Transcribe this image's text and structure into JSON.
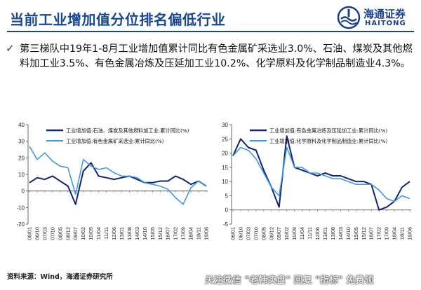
{
  "slide": {
    "title": "当前工业增加值分位排名偏低行业",
    "logo": {
      "cn": "海通证券",
      "en": "HAITONG"
    },
    "bullet": "第三梯队中19年1-8月工业增加值累计同比有色金属矿采选业3.0%、石油、煤炭及其他燃料加工业3.5%、有色金属冶炼及压延加工业10.2%、化学原料及化学制品制造业4.3%。",
    "footer": "资料来源：Wind，海通证券研究所",
    "watermark": "关注微信 \"老韩实盘\" 回复 \"指标\" 免费领"
  },
  "colors": {
    "brand": "#17478f",
    "series_dark": "#13237a",
    "series_light": "#3f9be0"
  },
  "chart_data": [
    {
      "type": "line",
      "ylim": [
        -20,
        40
      ],
      "yticks": [
        "-20",
        "-10",
        "0",
        "10",
        "20",
        "30",
        "40"
      ],
      "categories": [
        "06/01",
        "06/10",
        "07/03",
        "07/10",
        "08/05",
        "08/12",
        "09/07",
        "10/02",
        "10/09",
        "11/04",
        "11/11",
        "12/06",
        "13/01",
        "13/08",
        "14/03",
        "14/10",
        "15/05",
        "15/12",
        "16/07",
        "17/02",
        "17/09",
        "18/04",
        "18/11",
        "19/06"
      ],
      "series": [
        {
          "name": "工业增加值:石油、煤炭及其他燃料加工业:累计同比(%)",
          "values": [
            5,
            8,
            7,
            9,
            6,
            3,
            -8,
            12,
            17,
            9,
            8,
            7,
            8,
            9,
            7,
            5,
            5,
            6,
            6,
            9,
            7,
            4,
            6,
            3
          ]
        },
        {
          "name": "工业增加值:有色金属矿采选业:累计同比(%)",
          "values": [
            27,
            19,
            23,
            18,
            15,
            14,
            -2,
            19,
            15,
            13,
            14,
            11,
            9,
            9,
            8,
            5,
            4,
            3,
            1,
            -4,
            -8,
            2,
            6,
            3
          ]
        }
      ]
    },
    {
      "type": "line",
      "ylim": [
        -5,
        30
      ],
      "yticks": [
        "-5",
        "0",
        "5",
        "10",
        "15",
        "20",
        "25",
        "30"
      ],
      "categories": [
        "06/01",
        "06/10",
        "07/03",
        "07/10",
        "08/05",
        "08/12",
        "09/07",
        "10/02",
        "10/09",
        "11/04",
        "11/11",
        "12/06",
        "13/01",
        "13/08",
        "14/03",
        "14/10",
        "15/05",
        "15/12",
        "16/07",
        "17/02",
        "17/09",
        "18/04",
        "18/11",
        "19/06"
      ],
      "series": [
        {
          "name": "工业增加值:有色金属冶炼及压延加工业:累计同比(%)",
          "values": [
            19,
            25,
            22,
            21,
            14,
            8,
            1,
            26,
            15,
            14,
            13,
            12,
            13,
            12,
            12,
            11,
            10,
            10,
            9,
            0,
            1,
            3,
            8,
            10
          ]
        },
        {
          "name": "工业增加值:化学原料及化学制品制造业:累计同比(%)",
          "values": [
            19,
            22,
            21,
            18,
            13,
            8,
            5,
            22,
            15,
            15,
            13,
            13,
            12,
            11,
            11,
            10,
            9,
            9,
            9,
            7,
            4,
            3,
            5,
            4
          ]
        }
      ]
    }
  ]
}
